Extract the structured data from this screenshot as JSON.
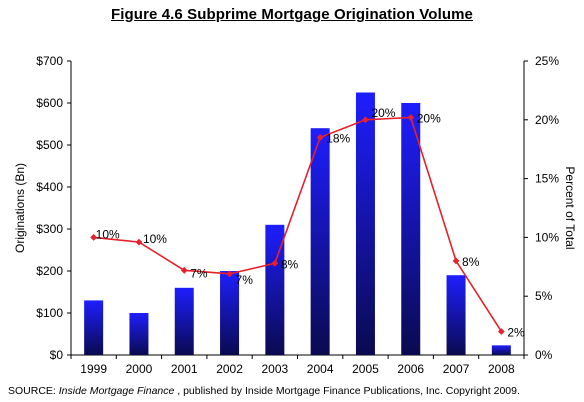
{
  "chart_data": {
    "type": "bar",
    "title": "Figure 4.6   Subprime Mortgage Origination Volume",
    "categories": [
      "1999",
      "2000",
      "2001",
      "2002",
      "2003",
      "2004",
      "2005",
      "2006",
      "2007",
      "2008"
    ],
    "series": [
      {
        "kind": "bar",
        "axis": "left",
        "values": [
          130,
          100,
          160,
          200,
          310,
          540,
          625,
          600,
          190,
          23
        ]
      },
      {
        "kind": "line",
        "axis": "right",
        "values": [
          10,
          9.6,
          7.2,
          6.9,
          7.8,
          18.5,
          20,
          20.2,
          8,
          2
        ],
        "data_labels": [
          "10%",
          "10%",
          "7%",
          "7%",
          "8%",
          "18%",
          "20%",
          "20%",
          "8%",
          "2%"
        ]
      }
    ],
    "ylabel": "Originations (Bn)",
    "ylabel_right": "Percent of Total",
    "ylim": [
      0,
      700
    ],
    "ylim_right": [
      0,
      25
    ],
    "yticks": [
      "$0",
      "$100",
      "$200",
      "$300",
      "$400",
      "$500",
      "$600",
      "$700"
    ],
    "yticks_right": [
      "0%",
      "5%",
      "10%",
      "15%",
      "20%",
      "25%"
    ],
    "grid": false,
    "colors": {
      "bar_top": "#1e1eff",
      "bar_bottom": "#0a0a50",
      "line": "#e8202a"
    }
  },
  "source": {
    "prefix": "SOURCE: ",
    "publication": "Inside Mortgage Finance",
    "suffix": " , published by Inside Mortgage Finance Publications, Inc.  Copyright 2009."
  }
}
